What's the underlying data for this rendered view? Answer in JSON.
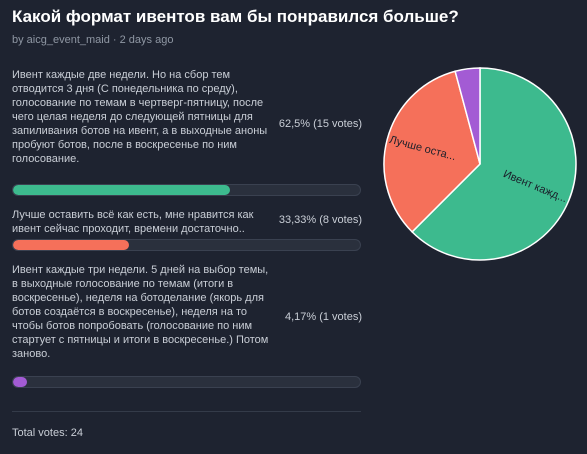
{
  "poll": {
    "title": "Какой формат ивентов вам бы понравился больше?",
    "meta": "by aicg_event_maid · 2 days ago",
    "total": "Total votes: 24"
  },
  "options": [
    {
      "text": "Ивент каждые две недели. Но на сбор тем отводится 3 дня (С понедельника по среду), голосование по темам в чертверг-пятницу, после чего целая неделя до следующей пятницы для запиливания ботов на ивент, а в выходные аноны пробуют ботов, после в воскресенье по ним голосование.",
      "result": "62,5% (15 votes)",
      "percent": 62.5,
      "votes": 15,
      "color": "#3dba8e",
      "pie_label": "Ивент кажд..."
    },
    {
      "text": "Лучше оставить всё как есть, мне нравится как ивент сейчас проходит, времени достаточно..",
      "result": "33,33% (8 votes)",
      "percent": 33.33,
      "votes": 8,
      "color": "#f5705a",
      "pie_label": "Лучше оста..."
    },
    {
      "text": "Ивент каждые три недели. 5 дней на выбор темы, в выходные голосование по темам (итоги в воскресенье), неделя на ботоделание (якорь для ботов создаётся в воскресенье), неделя на то чтобы ботов попробовать (голосование по ним стартует с пятницы и итоги в воскресенье.) Потом заново.",
      "result": "4,17% (1 votes)",
      "percent": 4.17,
      "votes": 1,
      "color": "#a35bd4",
      "pie_label": ""
    }
  ],
  "chart_data": {
    "type": "pie",
    "categories": [
      "Ивент кажд...",
      "Лучше оста...",
      ""
    ],
    "values": [
      15,
      8,
      1
    ],
    "colors": [
      "#3dba8e",
      "#f5705a",
      "#a35bd4"
    ]
  }
}
